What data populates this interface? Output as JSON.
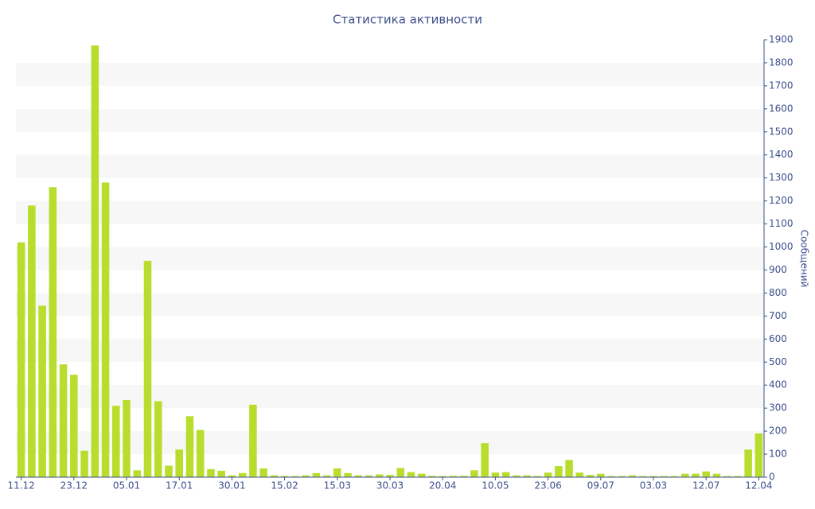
{
  "chart_data": {
    "type": "bar",
    "title": "Статистика активности",
    "y_label": "Сообщений",
    "categories": [
      "11.12",
      null,
      null,
      null,
      null,
      "23.12",
      null,
      null,
      null,
      null,
      "05.01",
      null,
      null,
      null,
      null,
      "17.01",
      null,
      null,
      null,
      null,
      "30.01",
      null,
      null,
      null,
      null,
      "15.02",
      null,
      null,
      null,
      null,
      "15.03",
      null,
      null,
      null,
      null,
      "30.03",
      null,
      null,
      null,
      null,
      "20.04",
      null,
      null,
      null,
      null,
      "10.05",
      null,
      null,
      null,
      null,
      "23.06",
      null,
      null,
      null,
      null,
      "09.07",
      null,
      null,
      null,
      null,
      "03.03",
      null,
      null,
      null,
      null,
      "12.07",
      null,
      null,
      null,
      null,
      "12.04"
    ],
    "values": [
      1020,
      1180,
      745,
      1260,
      490,
      445,
      115,
      1875,
      1280,
      310,
      335,
      30,
      940,
      330,
      50,
      120,
      265,
      205,
      35,
      28,
      8,
      18,
      315,
      38,
      8,
      5,
      5,
      8,
      18,
      8,
      38,
      18,
      8,
      8,
      12,
      10,
      40,
      22,
      15,
      6,
      5,
      6,
      6,
      30,
      148,
      20,
      22,
      8,
      8,
      5,
      20,
      48,
      75,
      20,
      10,
      15,
      5,
      5,
      8,
      5,
      5,
      5,
      5,
      15,
      15,
      25,
      15,
      5,
      5,
      120,
      190
    ],
    "color": "#b8dd2c",
    "ylim": [
      0,
      1900
    ],
    "yticks": [
      0,
      100,
      200,
      300,
      400,
      500,
      600,
      700,
      800,
      900,
      1000,
      1100,
      1200,
      1300,
      1400,
      1500,
      1600,
      1700,
      1800,
      1900
    ],
    "grid": "alternate-bands",
    "y_axis_side": "right"
  }
}
